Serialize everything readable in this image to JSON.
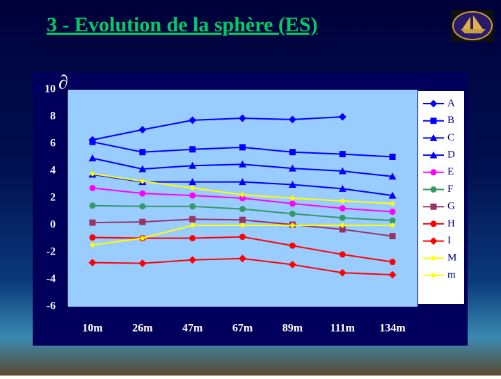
{
  "chart_data": {
    "type": "line",
    "title": "3 - Evolution de la sphère (ES)",
    "y_label": "∂",
    "categories": [
      "10m",
      "26m",
      "47m",
      "67m",
      "89m",
      "111m",
      "134m"
    ],
    "ylim": [
      -6,
      10
    ],
    "yticks": [
      -6,
      -4,
      -2,
      0,
      2,
      4,
      6,
      8,
      10
    ],
    "grid": false,
    "legend": "right",
    "series": [
      {
        "name": "A",
        "color": "#0000ff",
        "marker": "diamond",
        "values": [
          6.3,
          7.05,
          7.75,
          7.9,
          7.8,
          8.0,
          null
        ]
      },
      {
        "name": "B",
        "color": "#0000ff",
        "marker": "square",
        "values": [
          6.15,
          5.4,
          5.6,
          5.75,
          5.4,
          5.25,
          5.05
        ]
      },
      {
        "name": "C",
        "color": "#0000ff",
        "marker": "triangle",
        "values": [
          4.95,
          4.15,
          4.4,
          4.5,
          4.2,
          4.0,
          3.6
        ]
      },
      {
        "name": "D",
        "color": "#0000ff",
        "marker": "triangle",
        "values": [
          3.75,
          3.2,
          3.2,
          3.2,
          3.0,
          2.7,
          2.2
        ]
      },
      {
        "name": "E",
        "color": "#ff00ff",
        "marker": "circle",
        "values": [
          2.75,
          2.35,
          2.2,
          2.0,
          1.6,
          1.25,
          1.0
        ]
      },
      {
        "name": "F",
        "color": "#339966",
        "marker": "circle",
        "values": [
          1.45,
          1.4,
          1.4,
          1.2,
          0.85,
          0.55,
          0.35
        ]
      },
      {
        "name": "G",
        "color": "#993366",
        "marker": "square",
        "values": [
          0.2,
          0.25,
          0.45,
          0.4,
          0.05,
          -0.3,
          -0.8
        ]
      },
      {
        "name": "H",
        "color": "#ff0000",
        "marker": "circle",
        "values": [
          -0.9,
          -0.95,
          -0.95,
          -0.85,
          -1.5,
          -2.15,
          -2.7
        ]
      },
      {
        "name": "I",
        "color": "#ff0000",
        "marker": "diamond",
        "values": [
          -2.75,
          -2.8,
          -2.55,
          -2.45,
          -2.9,
          -3.5,
          -3.65
        ]
      },
      {
        "name": "M",
        "color": "#ffff00",
        "marker": "diamond",
        "values": [
          3.8,
          3.25,
          2.75,
          2.25,
          2.0,
          1.8,
          1.6
        ]
      },
      {
        "name": "m",
        "color": "#ffff00",
        "marker": "diamond",
        "values": [
          -1.45,
          -0.95,
          0,
          0,
          0,
          0,
          0
        ]
      }
    ]
  }
}
